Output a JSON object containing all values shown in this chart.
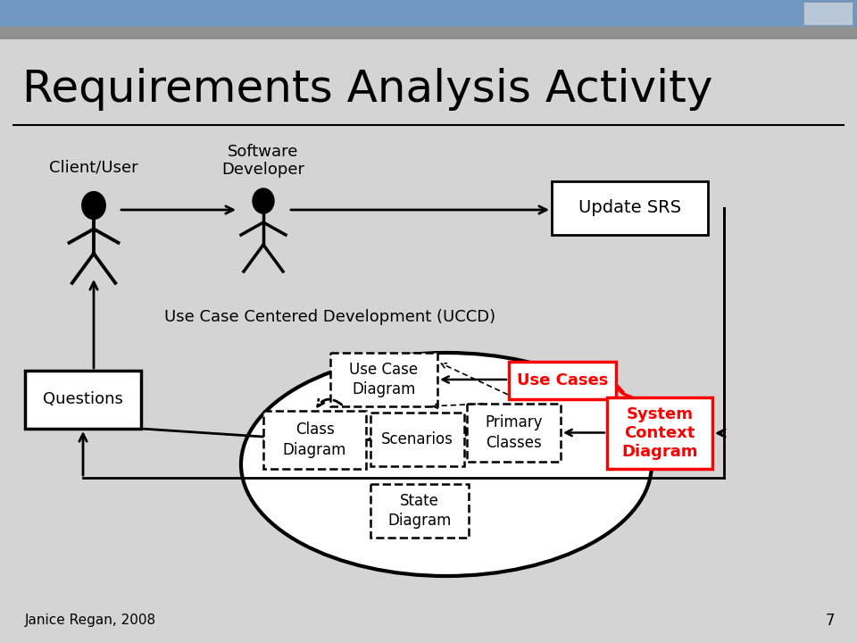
{
  "title": "Requirements Analysis Activity",
  "bg_color": "#d4d4d4",
  "header_bar_color1": "#7097c0",
  "header_bar_color2": "#909090",
  "title_fontsize": 36,
  "title_color": "#000000",
  "footer_text": "Janice Regan, 2008",
  "page_number": "7",
  "client_user_label": "Client/User",
  "software_developer_label": "Software\nDeveloper",
  "update_srs_label": "Update SRS",
  "uccd_label": "Use Case Centered Development (UCCD)",
  "questions_label": "Questions",
  "use_case_diagram_label": "Use Case\nDiagram",
  "use_cases_label": "Use Cases",
  "class_diagram_label": "Class\nDiagram",
  "scenarios_label": "Scenarios",
  "primary_classes_label": "Primary\nClasses",
  "system_context_label": "System\nContext\nDiagram",
  "state_diagram_label": "State\nDiagram"
}
